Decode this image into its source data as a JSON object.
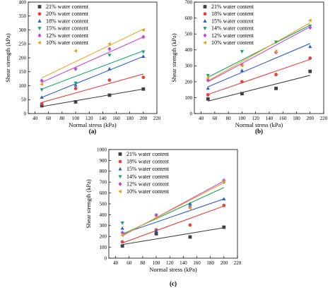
{
  "chart_data": [
    {
      "type": "scatter",
      "panel_label": "(a)",
      "xlabel": "Normal stress (kPa)",
      "ylabel": "Shear strength (kPa)",
      "xlim": [
        30,
        220
      ],
      "ylim": [
        0,
        400
      ],
      "xticks": [
        40,
        60,
        80,
        100,
        120,
        140,
        160,
        180,
        200,
        220
      ],
      "yticks": [
        0,
        50,
        100,
        150,
        200,
        250,
        300,
        350,
        400
      ],
      "grid": false,
      "legend_position": "top-left",
      "x": [
        50,
        100,
        150,
        200
      ],
      "series": [
        {
          "name": "21% water content",
          "marker": "square",
          "color": "#404040",
          "values": [
            28,
            42,
            66,
            88
          ],
          "fit": [
            25,
            88
          ]
        },
        {
          "name": "20% water content",
          "marker": "circle",
          "color": "#e8423f",
          "values": [
            35,
            90,
            120,
            130
          ],
          "fit": [
            40,
            142
          ]
        },
        {
          "name": "18% water content",
          "marker": "triangle-up",
          "color": "#2f5fd0",
          "values": [
            58,
            102,
            160,
            205
          ],
          "fit": [
            58,
            205
          ]
        },
        {
          "name": "15% water content",
          "marker": "triangle-down",
          "color": "#1aa56a",
          "values": [
            86,
            110,
            210,
            222
          ],
          "fit": [
            88,
            225
          ]
        },
        {
          "name": "12% water content",
          "marker": "diamond",
          "color": "#c04fd6",
          "values": [
            118,
            160,
            232,
            275
          ],
          "fit": [
            112,
            275
          ]
        },
        {
          "name": "10% water content",
          "marker": "triangle-left",
          "color": "#e8a21a",
          "values": [
            105,
            225,
            250,
            300
          ],
          "fit": [
            128,
            303
          ]
        }
      ]
    },
    {
      "type": "scatter",
      "panel_label": "(b)",
      "xlabel": "Normal stress (kPa)",
      "ylabel": "Shear strength (kPa)",
      "xlim": [
        30,
        220
      ],
      "ylim": [
        0,
        700
      ],
      "xticks": [
        40,
        60,
        80,
        100,
        120,
        140,
        160,
        180,
        200,
        220
      ],
      "yticks": [
        0,
        100,
        200,
        300,
        400,
        500,
        600,
        700
      ],
      "grid": false,
      "legend_position": "top-left",
      "x": [
        50,
        100,
        150,
        200
      ],
      "series": [
        {
          "name": "21% water content",
          "marker": "square",
          "color": "#404040",
          "values": [
            92,
            125,
            158,
            265
          ],
          "fit": [
            78,
            240
          ]
        },
        {
          "name": "18% water content",
          "marker": "circle",
          "color": "#e8423f",
          "values": [
            118,
            200,
            245,
            348
          ],
          "fit": [
            120,
            340
          ]
        },
        {
          "name": "15% water content",
          "marker": "triangle-up",
          "color": "#2f5fd0",
          "values": [
            158,
            270,
            390,
            420
          ],
          "fit": [
            168,
            440
          ]
        },
        {
          "name": "14% water content",
          "marker": "triangle-down",
          "color": "#1aa56a",
          "values": [
            240,
            390,
            450,
            550
          ],
          "fit": [
            228,
            555
          ]
        },
        {
          "name": "12% water content",
          "marker": "diamond",
          "color": "#c04fd6",
          "values": [
            210,
            305,
            385,
            540
          ],
          "fit": [
            200,
            545
          ]
        },
        {
          "name": "10% water content",
          "marker": "triangle-left",
          "color": "#e8a21a",
          "values": [
            225,
            300,
            390,
            585
          ],
          "fit": [
            205,
            570
          ]
        }
      ]
    },
    {
      "type": "scatter",
      "panel_label": "(c)",
      "xlabel": "Normal stress (kPa)",
      "ylabel": "Shear strength (kPa)",
      "xlim": [
        30,
        220
      ],
      "ylim": [
        0,
        1000
      ],
      "xticks": [
        40,
        60,
        80,
        100,
        120,
        140,
        160,
        180,
        200,
        220
      ],
      "yticks": [
        0,
        100,
        200,
        300,
        400,
        500,
        600,
        700,
        800,
        900,
        1000
      ],
      "grid": false,
      "legend_position": "top-left",
      "x": [
        50,
        100,
        150,
        200
      ],
      "series": [
        {
          "name": "21% water content",
          "marker": "square",
          "color": "#404040",
          "values": [
            112,
            225,
            195,
            285
          ],
          "fit": [
            125,
            280
          ]
        },
        {
          "name": "18% water content",
          "marker": "circle",
          "color": "#e8423f",
          "values": [
            150,
            260,
            305,
            485
          ],
          "fit": [
            140,
            480
          ]
        },
        {
          "name": "15% water content",
          "marker": "triangle-up",
          "color": "#2f5fd0",
          "values": [
            275,
            250,
            500,
            545
          ],
          "fit": [
            225,
            545
          ]
        },
        {
          "name": "14% water content",
          "marker": "triangle-down",
          "color": "#1aa56a",
          "values": [
            325,
            395,
            480,
            700
          ],
          "fit": [
            220,
            650
          ]
        },
        {
          "name": "12% water content",
          "marker": "diamond",
          "color": "#c04fd6",
          "values": [
            235,
            395,
            470,
            715
          ],
          "fit": [
            205,
            710
          ]
        },
        {
          "name": "10% water content",
          "marker": "triangle-left",
          "color": "#e8a21a",
          "values": [
            210,
            370,
            460,
            705
          ],
          "fit": [
            210,
            695
          ]
        }
      ]
    }
  ]
}
